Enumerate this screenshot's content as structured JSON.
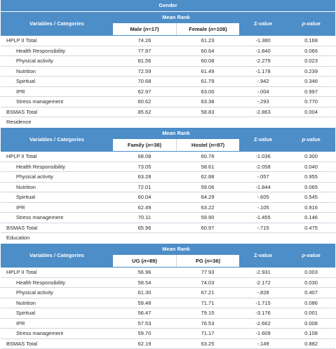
{
  "column_headers": {
    "variables": "Variables / Categories",
    "mean_rank": "Mean Rank",
    "z_value": "Z-value",
    "p_value": "p-value"
  },
  "sections": [
    {
      "title": "Gender",
      "group1": {
        "name": "Male",
        "n": "n",
        "eq": "=17"
      },
      "group2": {
        "name": "Female",
        "n": "n",
        "eq": "=108"
      },
      "rows": [
        {
          "label": "HPLP II Total",
          "indent": false,
          "g1": "74.26",
          "g2": "61.23",
          "z": "-1.380",
          "p": "0.168"
        },
        {
          "label": "Health Responsibility",
          "indent": true,
          "g1": "77.97",
          "g2": "60.64",
          "z": "-1.840",
          "p": "0.066"
        },
        {
          "label": "Physical activity",
          "indent": true,
          "g1": "81.56",
          "g2": "60.08",
          "z": "-2.279",
          "p": "0.023"
        },
        {
          "label": "Nutrition",
          "indent": true,
          "g1": "72.59",
          "g2": "61.49",
          "z": "-1.178",
          "p": "0.239"
        },
        {
          "label": "Spiritual",
          "indent": true,
          "g1": "70.68",
          "g2": "61.79",
          "z": "-.942",
          "p": "0.346"
        },
        {
          "label": "IPR",
          "indent": true,
          "g1": "62.97",
          "g2": "63.00",
          "z": "-.004",
          "p": "0.997"
        },
        {
          "label": "Stress management",
          "indent": true,
          "g1": "60.62",
          "g2": "63.38",
          "z": "-.293",
          "p": "0.770"
        },
        {
          "label": "BSMAS Total",
          "indent": false,
          "g1": "85.62",
          "g2": "58.83",
          "z": "-2.863",
          "p": "0.004"
        }
      ]
    },
    {
      "title": "Residence",
      "group1": {
        "name": "Family",
        "n": "n",
        "eq": "=38"
      },
      "group2": {
        "name": "Hostel",
        "n": "n",
        "eq": "=87"
      },
      "rows": [
        {
          "label": "HPLP II Total",
          "indent": false,
          "g1": "68.08",
          "g2": "60.78",
          "z": "-1.036",
          "p": "0.300"
        },
        {
          "label": "Health Responsibility",
          "indent": true,
          "g1": "73.05",
          "g2": "58.61",
          "z": "-2.058",
          "p": "0.040"
        },
        {
          "label": "Physical activity",
          "indent": true,
          "g1": "63.28",
          "g2": "62.88",
          "z": "-.057",
          "p": "0.955"
        },
        {
          "label": "Nutrition",
          "indent": true,
          "g1": "72.01",
          "g2": "59.06",
          "z": "-1.844",
          "p": "0.065"
        },
        {
          "label": "Spiritual",
          "indent": true,
          "g1": "60.04",
          "g2": "64.29",
          "z": "-.605",
          "p": "0.545"
        },
        {
          "label": "IPR",
          "indent": true,
          "g1": "62.49",
          "g2": "63.22",
          "z": "-.105",
          "p": "0.916"
        },
        {
          "label": "Stress management",
          "indent": true,
          "g1": "70.11",
          "g2": "59.90",
          "z": "-1.455",
          "p": "0.146"
        },
        {
          "label": "BSMAS Total",
          "indent": false,
          "g1": "65.96",
          "g2": "60.97",
          "z": "-.715",
          "p": "0.475"
        }
      ]
    },
    {
      "title": "Education",
      "group1": {
        "name": "UG",
        "n": "n",
        "eq": "=89"
      },
      "group2": {
        "name": "PG",
        "n": "n",
        "eq": "=36"
      },
      "rows": [
        {
          "label": "HPLP II Total",
          "indent": false,
          "g1": "56.96",
          "g2": "77.93",
          "z": "-2.931",
          "p": "0.003"
        },
        {
          "label": "Health Responsibility",
          "indent": true,
          "g1": "58.54",
          "g2": "74.03",
          "z": "-2.172",
          "p": "0.030"
        },
        {
          "label": "Physical activity",
          "indent": true,
          "g1": "61.30",
          "g2": "67.21",
          "z": "-.828",
          "p": "0.407"
        },
        {
          "label": "Nutrition",
          "indent": true,
          "g1": "59.48",
          "g2": "71.71",
          "z": "-1.715",
          "p": "0.086"
        },
        {
          "label": "Spiritual",
          "indent": true,
          "g1": "56.47",
          "g2": "79.15",
          "z": "-3.176",
          "p": "0.001"
        },
        {
          "label": "IPR",
          "indent": true,
          "g1": "57.53",
          "g2": "76.53",
          "z": "-2.662",
          "p": "0.008"
        },
        {
          "label": "Stress management",
          "indent": true,
          "g1": "59.70",
          "g2": "71.17",
          "z": "-1.609",
          "p": "0.108"
        },
        {
          "label": "BSMAS Total",
          "indent": false,
          "g1": "62.19",
          "g2": "63.25",
          "z": "-.149",
          "p": "0.882"
        }
      ]
    }
  ],
  "colors": {
    "header_blue": "#4d8dc8",
    "row_rule": "#cfd8e2"
  }
}
